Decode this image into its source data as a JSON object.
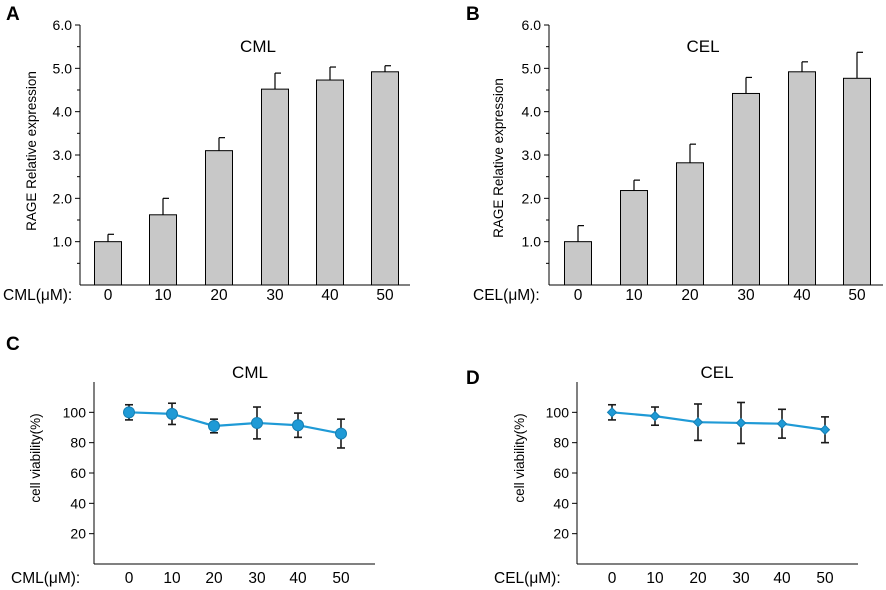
{
  "figure": {
    "colors": {
      "bar_fill": "#c8c8c8",
      "line": "#1f9ad6",
      "axis": "#000000"
    }
  },
  "chart_data": [
    {
      "panel": "A",
      "type": "bar",
      "title": "CML",
      "ylabel": "RAGE Relative expression",
      "x_prefix": "CML(μM):",
      "categories": [
        "0",
        "10",
        "20",
        "30",
        "40",
        "50"
      ],
      "values": [
        1.0,
        1.62,
        3.1,
        4.52,
        4.73,
        4.92
      ],
      "errors": [
        0.17,
        0.38,
        0.3,
        0.37,
        0.3,
        0.14
      ],
      "ylim": [
        0,
        6
      ],
      "yticks": [
        "1.0",
        "2.0",
        "3.0",
        "4.0",
        "5.0",
        "6.0"
      ]
    },
    {
      "panel": "B",
      "type": "bar",
      "title": "CEL",
      "ylabel": "RAGE Relative expression",
      "x_prefix": "CEL(μM):",
      "categories": [
        "0",
        "10",
        "20",
        "30",
        "40",
        "50"
      ],
      "values": [
        1.0,
        2.18,
        2.82,
        4.42,
        4.92,
        4.77
      ],
      "errors": [
        0.37,
        0.24,
        0.43,
        0.37,
        0.23,
        0.6
      ],
      "ylim": [
        0,
        6
      ],
      "yticks": [
        "1.0",
        "2.0",
        "3.0",
        "4.0",
        "5.0",
        "6.0"
      ]
    },
    {
      "panel": "C",
      "type": "line",
      "title": "CML",
      "ylabel": "cell viability(%)",
      "x_prefix": "CML(μM):",
      "categories": [
        "0",
        "10",
        "20",
        "30",
        "40",
        "50"
      ],
      "values": [
        100,
        99,
        91,
        93,
        91.5,
        86
      ],
      "errors": [
        5,
        7,
        4.5,
        10.5,
        8,
        9.5
      ],
      "ylim": [
        0,
        120
      ],
      "yticks": [
        "20",
        "40",
        "60",
        "80",
        "100"
      ],
      "marker": "circle"
    },
    {
      "panel": "D",
      "type": "line",
      "title": "CEL",
      "ylabel": "cell viability(%)",
      "x_prefix": "CEL(μM):",
      "categories": [
        "0",
        "10",
        "20",
        "30",
        "40",
        "50"
      ],
      "values": [
        100,
        97.5,
        93.5,
        93,
        92.5,
        88.5
      ],
      "errors": [
        5,
        6,
        12,
        13.5,
        9.5,
        8.5
      ],
      "ylim": [
        0,
        120
      ],
      "yticks": [
        "20",
        "40",
        "60",
        "80",
        "100"
      ],
      "marker": "diamond"
    }
  ]
}
